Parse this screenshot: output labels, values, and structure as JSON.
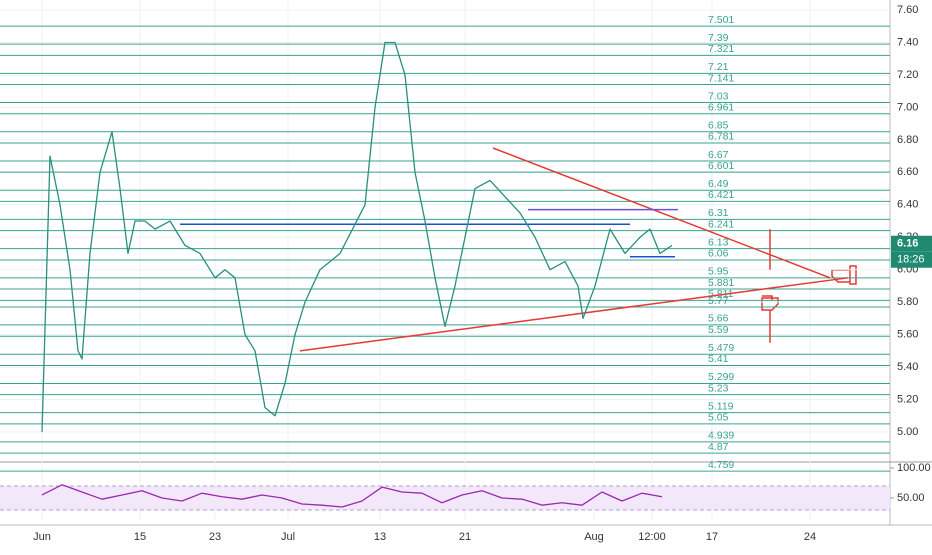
{
  "chart_data": [
    {
      "type": "line",
      "color": "#2a8f7c",
      "grid": true,
      "xlim": [
        -4.2,
        84.8
      ],
      "ylim": [
        4.815,
        7.662
      ],
      "xticks": [
        {
          "value": 0,
          "label": "Jun"
        },
        {
          "value": 9.8,
          "label": "15"
        },
        {
          "value": 17.3,
          "label": "23"
        },
        {
          "value": 24.6,
          "label": "Jul"
        },
        {
          "value": 33.8,
          "label": "13"
        },
        {
          "value": 42.3,
          "label": "21"
        },
        {
          "value": 55.2,
          "label": "Aug"
        },
        {
          "value": 61,
          "label": "12:00"
        },
        {
          "value": 67,
          "label": "17"
        },
        {
          "value": 76.8,
          "label": "24"
        }
      ],
      "yticks": [
        {
          "value": 5.0,
          "label": "5.00"
        },
        {
          "value": 5.2,
          "label": "5.20"
        },
        {
          "value": 5.4,
          "label": "5.40"
        },
        {
          "value": 5.6,
          "label": "5.60"
        },
        {
          "value": 5.8,
          "label": "5.80"
        },
        {
          "value": 6.0,
          "label": "6.00"
        },
        {
          "value": 6.2,
          "label": "6.20"
        },
        {
          "value": 6.4,
          "label": "6.40"
        },
        {
          "value": 6.6,
          "label": "6.60"
        },
        {
          "value": 6.8,
          "label": "6.80"
        },
        {
          "value": 7.0,
          "label": "7.00"
        },
        {
          "value": 7.2,
          "label": "7.20"
        },
        {
          "value": 7.4,
          "label": "7.40"
        },
        {
          "value": 7.6,
          "label": "7.60"
        }
      ],
      "x": [
        0,
        0.8,
        1.8,
        2.8,
        3.6,
        4.0,
        4.8,
        5.8,
        7.0,
        7.8,
        8.6,
        9.3,
        10.3,
        11.3,
        12.8,
        14.3,
        15.8,
        17.3,
        18.3,
        19.3,
        20.3,
        21.3,
        22.3,
        23.3,
        24.3,
        25.3,
        26.3,
        27.8,
        29.8,
        32.3,
        33.3,
        34.3,
        35.3,
        36.3,
        37.3,
        38.3,
        39.3,
        40.3,
        41.3,
        42.3,
        43.3,
        44.8,
        46.3,
        47.8,
        49.3,
        50.8,
        52.3,
        53.6,
        54.1,
        55.3,
        56.8,
        58.3,
        59.8,
        60.8,
        61.8,
        63.0
      ],
      "values": [
        5.0,
        6.7,
        6.4,
        6.0,
        5.5,
        5.45,
        6.1,
        6.6,
        6.85,
        6.5,
        6.1,
        6.3,
        6.3,
        6.25,
        6.3,
        6.15,
        6.1,
        5.95,
        6.0,
        5.95,
        5.6,
        5.5,
        5.15,
        5.1,
        5.3,
        5.6,
        5.8,
        6.0,
        6.1,
        6.4,
        7.0,
        7.4,
        7.4,
        7.2,
        6.6,
        6.3,
        5.95,
        5.65,
        5.9,
        6.2,
        6.5,
        6.55,
        6.45,
        6.35,
        6.2,
        6.0,
        6.05,
        5.9,
        5.7,
        5.9,
        6.25,
        6.1,
        6.2,
        6.25,
        6.1,
        6.15
      ],
      "levels": [
        7.501,
        7.39,
        7.321,
        7.21,
        7.141,
        7.03,
        6.961,
        6.85,
        6.781,
        6.67,
        6.601,
        6.49,
        6.421,
        6.31,
        6.241,
        6.13,
        6.06,
        5.95,
        5.881,
        5.811,
        5.77,
        5.66,
        5.59,
        5.479,
        5.41,
        5.299,
        5.23,
        5.119,
        5.05,
        4.939,
        4.87,
        4.759
      ],
      "level_color": "#3aa38f",
      "lines": [
        {
          "x": [
            45.1,
            78.8
          ],
          "y": [
            6.75,
            5.95
          ],
          "color": "#e53935"
        },
        {
          "x": [
            25.8,
            80.6
          ],
          "y": [
            5.5,
            5.95
          ],
          "color": "#e53935"
        },
        {
          "x": [
            13.8,
            58.8
          ],
          "y": [
            6.28,
            6.28
          ],
          "color": "#1e4fd1"
        },
        {
          "x": [
            48.6,
            63.6
          ],
          "y": [
            6.37,
            6.37
          ],
          "color": "#6a4fd1"
        },
        {
          "x": [
            58.8,
            63.3
          ],
          "y": [
            6.08,
            6.08
          ],
          "color": "#1e4fd1"
        },
        {
          "x": [
            72.8,
            72.8
          ],
          "y": [
            6.0,
            6.25
          ],
          "color": "#e53935"
        },
        {
          "x": [
            72.8,
            72.8
          ],
          "y": [
            5.75,
            5.55
          ],
          "color": "#e53935"
        }
      ],
      "last_price": 6.16,
      "countdown": "18:26"
    },
    {
      "type": "line",
      "color": "#9c27b0",
      "xlim": [
        -4.2,
        84.8
      ],
      "ylim": [
        13.3,
        108.3
      ],
      "yticks": [
        {
          "value": 100,
          "label": "100.00"
        },
        {
          "value": 50,
          "label": "50.00"
        }
      ],
      "bands": [
        70,
        30
      ],
      "x": [
        0,
        2,
        4,
        6,
        8,
        10,
        12,
        14,
        16,
        18,
        20,
        22,
        24,
        26,
        28,
        30,
        32,
        34,
        36,
        38,
        40,
        42,
        44,
        46,
        48,
        50,
        52,
        54,
        56,
        58,
        60,
        62
      ],
      "values": [
        55,
        72,
        60,
        48,
        55,
        62,
        50,
        45,
        58,
        52,
        48,
        55,
        50,
        40,
        38,
        35,
        45,
        68,
        60,
        58,
        42,
        55,
        62,
        50,
        48,
        38,
        42,
        38,
        60,
        45,
        58,
        52
      ]
    }
  ]
}
